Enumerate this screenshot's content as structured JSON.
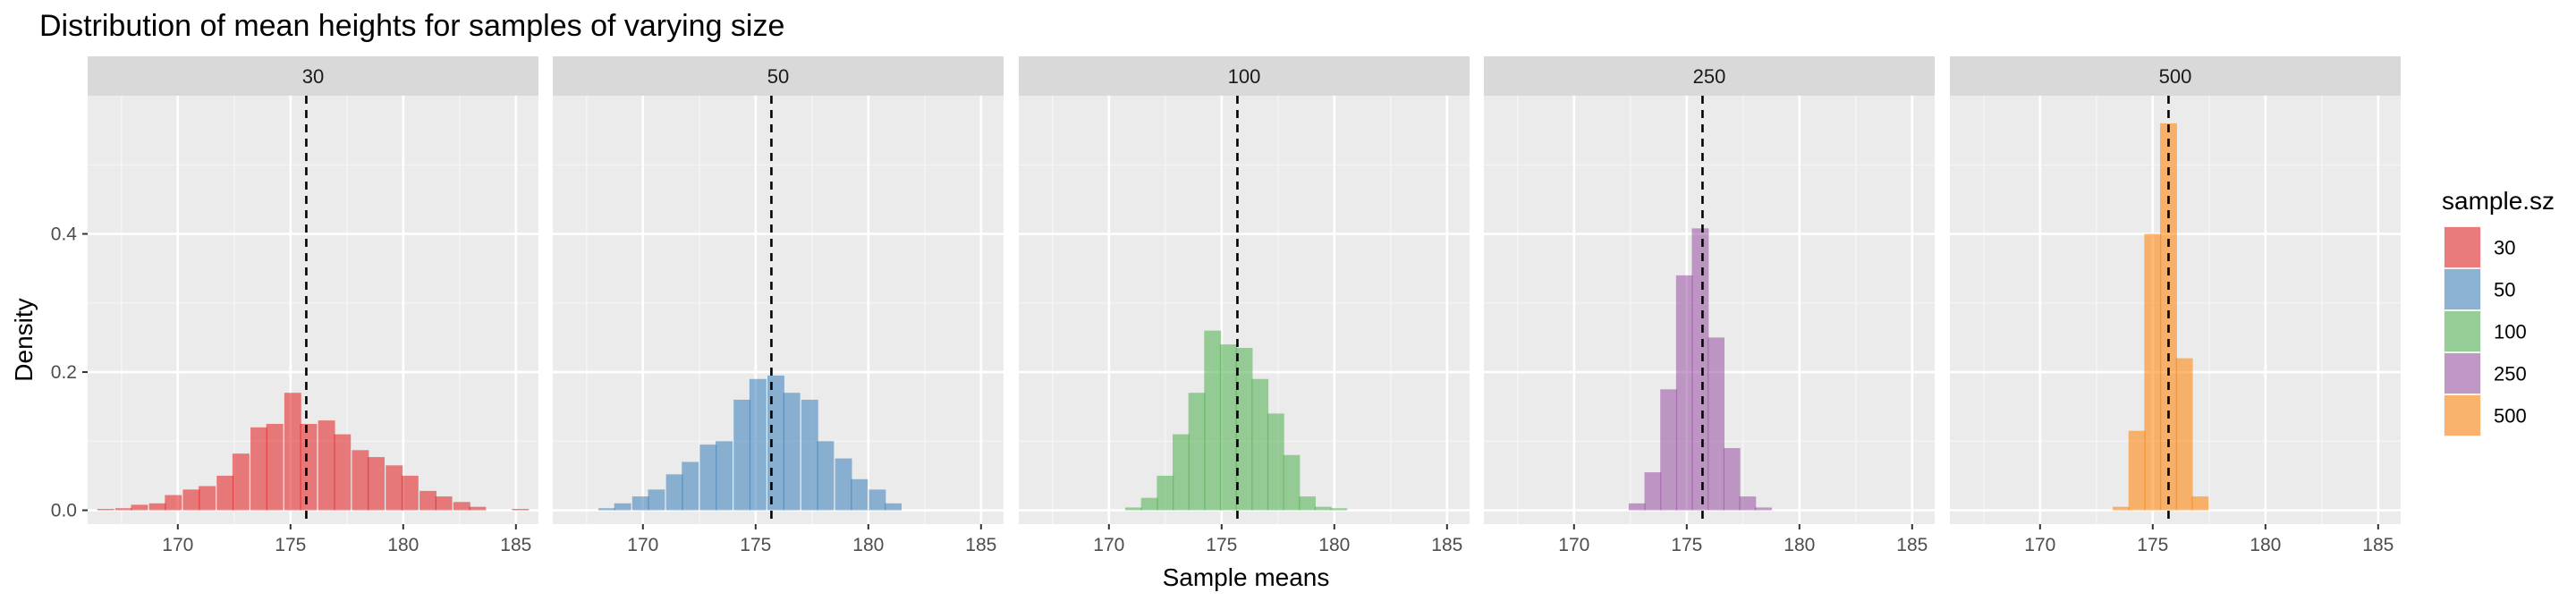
{
  "chart_data": {
    "type": "bar",
    "title": "Distribution of mean heights for samples of varying size",
    "xlabel": "Sample means",
    "ylabel": "Density",
    "xlim": [
      166,
      186
    ],
    "ylim": [
      -0.02,
      0.6
    ],
    "x_ticks": [
      170,
      175,
      180,
      185
    ],
    "y_ticks": [
      0,
      0.2,
      0.4
    ],
    "y_tick_labels": [
      "0.0",
      "0.2",
      "0.4"
    ],
    "vline_x": 175.7,
    "bin_width": 0.75,
    "grid": true,
    "legend": {
      "title": "sample.sz",
      "position": "right"
    },
    "facets": [
      {
        "label": "30",
        "color": "#E41A1C",
        "bins": [
          [
            166.8,
            0.002
          ],
          [
            167.6,
            0.003
          ],
          [
            168.3,
            0.008
          ],
          [
            169.1,
            0.01
          ],
          [
            169.8,
            0.022
          ],
          [
            170.6,
            0.03
          ],
          [
            171.3,
            0.035
          ],
          [
            172.1,
            0.05
          ],
          [
            172.8,
            0.082
          ],
          [
            173.6,
            0.12
          ],
          [
            174.3,
            0.125
          ],
          [
            175.1,
            0.17
          ],
          [
            175.8,
            0.125
          ],
          [
            176.6,
            0.13
          ],
          [
            177.3,
            0.11
          ],
          [
            178.1,
            0.087
          ],
          [
            178.8,
            0.077
          ],
          [
            179.6,
            0.065
          ],
          [
            180.3,
            0.05
          ],
          [
            181.1,
            0.028
          ],
          [
            181.8,
            0.02
          ],
          [
            182.6,
            0.012
          ],
          [
            183.3,
            0.005
          ],
          [
            185.2,
            0.002
          ]
        ]
      },
      {
        "label": "50",
        "color": "#377EB8",
        "bins": [
          [
            168.4,
            0.003
          ],
          [
            169.1,
            0.01
          ],
          [
            169.9,
            0.02
          ],
          [
            170.6,
            0.03
          ],
          [
            171.4,
            0.052
          ],
          [
            172.1,
            0.07
          ],
          [
            172.9,
            0.095
          ],
          [
            173.6,
            0.1
          ],
          [
            174.4,
            0.16
          ],
          [
            175.1,
            0.19
          ],
          [
            175.9,
            0.195
          ],
          [
            176.6,
            0.17
          ],
          [
            177.4,
            0.16
          ],
          [
            178.1,
            0.1
          ],
          [
            178.9,
            0.075
          ],
          [
            179.6,
            0.045
          ],
          [
            180.4,
            0.03
          ],
          [
            181.1,
            0.01
          ]
        ]
      },
      {
        "label": "100",
        "color": "#4DAF4A",
        "bins": [
          [
            171.1,
            0.004
          ],
          [
            171.8,
            0.018
          ],
          [
            172.5,
            0.05
          ],
          [
            173.2,
            0.11
          ],
          [
            173.9,
            0.17
          ],
          [
            174.6,
            0.26
          ],
          [
            175.3,
            0.24
          ],
          [
            176.0,
            0.235
          ],
          [
            176.7,
            0.19
          ],
          [
            177.4,
            0.14
          ],
          [
            178.1,
            0.08
          ],
          [
            178.8,
            0.02
          ],
          [
            179.5,
            0.005
          ],
          [
            180.2,
            0.003
          ]
        ]
      },
      {
        "label": "250",
        "color": "#984EA3",
        "bins": [
          [
            172.8,
            0.01
          ],
          [
            173.5,
            0.055
          ],
          [
            174.2,
            0.175
          ],
          [
            174.9,
            0.34
          ],
          [
            175.6,
            0.408
          ],
          [
            176.3,
            0.25
          ],
          [
            177.0,
            0.09
          ],
          [
            177.7,
            0.02
          ],
          [
            178.4,
            0.004
          ]
        ]
      },
      {
        "label": "500",
        "color": "#FF7F00",
        "bins": [
          [
            173.6,
            0.005
          ],
          [
            174.3,
            0.115
          ],
          [
            175.0,
            0.4
          ],
          [
            175.7,
            0.56
          ],
          [
            176.4,
            0.22
          ],
          [
            177.1,
            0.02
          ]
        ]
      }
    ]
  }
}
